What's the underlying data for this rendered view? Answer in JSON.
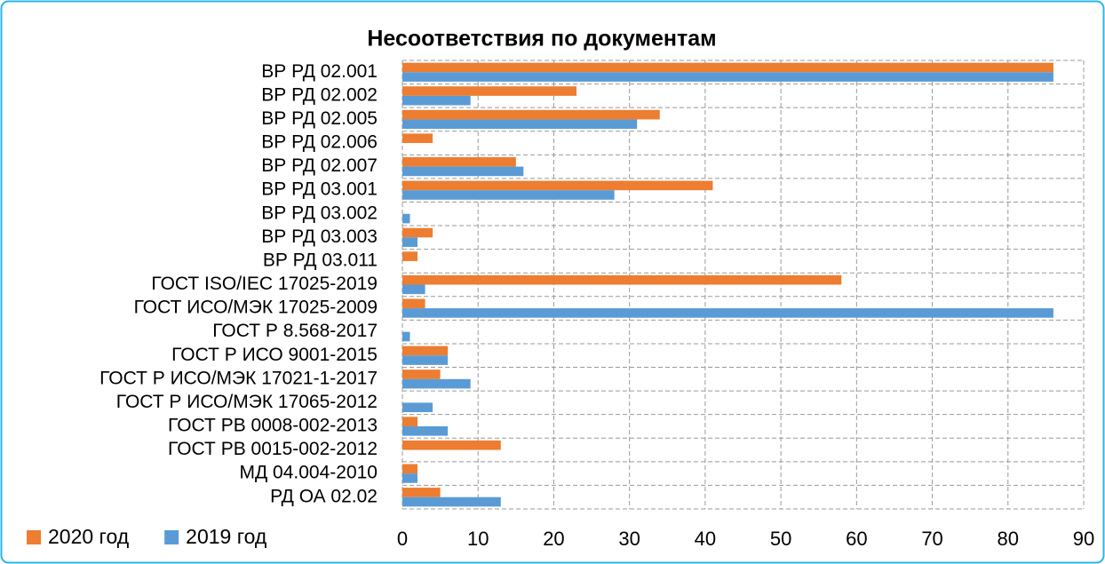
{
  "chart_data": {
    "type": "hbar",
    "title": "Несоответствия по документам",
    "categories": [
      "ВР РД 02.001",
      "ВР РД 02.002",
      "ВР РД 02.005",
      "ВР РД 02.006",
      "ВР РД 02.007",
      "ВР РД 03.001",
      "ВР РД 03.002",
      "ВР РД 03.003",
      "ВР РД 03.011",
      "ГОСТ ISO/IEC 17025-2019",
      "ГОСТ ИСО/МЭК 17025-2009",
      "ГОСТ Р 8.568-2017",
      "ГОСТ Р ИСО 9001-2015",
      "ГОСТ Р ИСО/МЭК 17021-1-2017",
      "ГОСТ Р ИСО/МЭК 17065-2012",
      "ГОСТ РВ 0008-002-2013",
      "ГОСТ РВ 0015-002-2012",
      "МД 04.004-2010",
      "РД ОА 02.02"
    ],
    "series": [
      {
        "name": "2020 год",
        "color": "#ed7d31",
        "values": [
          86,
          23,
          34,
          4,
          15,
          41,
          0,
          4,
          2,
          58,
          3,
          0,
          6,
          5,
          0,
          2,
          13,
          2,
          5
        ]
      },
      {
        "name": "2019 год",
        "color": "#5b9bd5",
        "values": [
          86,
          9,
          31,
          0,
          16,
          28,
          1,
          2,
          0,
          3,
          86,
          1,
          6,
          9,
          4,
          6,
          0,
          2,
          13
        ]
      }
    ],
    "xlim": [
      0,
      90
    ],
    "xticks": [
      0,
      10,
      20,
      30,
      40,
      50,
      60,
      70,
      80,
      90
    ],
    "grid": true,
    "legend": "bottom-left"
  }
}
